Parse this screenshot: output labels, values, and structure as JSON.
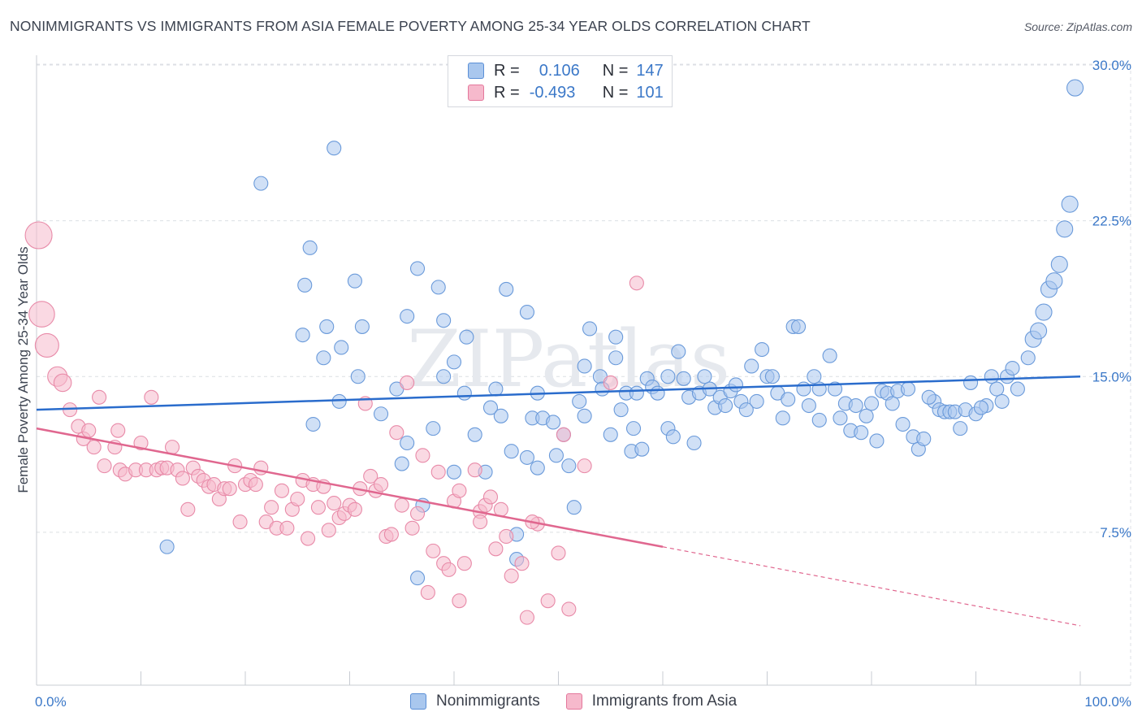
{
  "title": "NONIMMIGRANTS VS IMMIGRANTS FROM ASIA FEMALE POVERTY AMONG 25-34 YEAR OLDS CORRELATION CHART",
  "source": "Source: ZipAtlas.com",
  "watermark": "ZIPatlas",
  "legend": {
    "r_label": "R =",
    "n_label": "N =",
    "series": [
      {
        "name": "Nonimmigrants",
        "r": "0.106",
        "n": "147",
        "fill": "#a9c7ee",
        "stroke": "#5b8fd6"
      },
      {
        "name": "Immigrants from Asia",
        "r": "-0.493",
        "n": "101",
        "fill": "#f6b9cc",
        "stroke": "#e4789c"
      }
    ]
  },
  "colors": {
    "blue_fill": "#a9c7ee",
    "blue_stroke": "#6a9ada",
    "blue_line": "#2a6ccc",
    "pink_fill": "#f6b9cc",
    "pink_stroke": "#e88aa8",
    "pink_line": "#e0678f",
    "grid": "#dcdfe4",
    "tick_label": "#3b78c8",
    "axis": "#c8ccd3"
  },
  "chart_data": {
    "type": "scatter",
    "title": "NONIMMIGRANTS VS IMMIGRANTS FROM ASIA FEMALE POVERTY AMONG 25-34 YEAR OLDS CORRELATION CHART",
    "xlabel": "",
    "ylabel": "Female Poverty Among 25-34 Year Olds",
    "xlim": [
      0,
      100
    ],
    "ylim": [
      0,
      31
    ],
    "x_tick_labels": [
      "0.0%",
      "100.0%"
    ],
    "y_ticks": [
      7.5,
      15.0,
      22.5,
      30.0
    ],
    "y_tick_labels": [
      "7.5%",
      "15.0%",
      "22.5%",
      "30.0%"
    ],
    "grid": true,
    "series": [
      {
        "name": "Nonimmigrants",
        "trend": {
          "x": [
            0,
            100
          ],
          "y": [
            13.4,
            15.0
          ],
          "dashed_from": null
        },
        "points": [
          [
            12.5,
            6.8
          ],
          [
            21.5,
            24.3
          ],
          [
            28.5,
            26.0
          ],
          [
            25.5,
            17.0
          ],
          [
            25.7,
            19.4
          ],
          [
            26.5,
            12.7
          ],
          [
            26.2,
            21.2
          ],
          [
            27.5,
            15.9
          ],
          [
            27.8,
            17.4
          ],
          [
            29.0,
            13.8
          ],
          [
            29.2,
            16.4
          ],
          [
            30.5,
            19.6
          ],
          [
            30.8,
            15.0
          ],
          [
            31.2,
            17.4
          ],
          [
            33.0,
            13.2
          ],
          [
            34.5,
            14.4
          ],
          [
            35.0,
            10.8
          ],
          [
            35.5,
            11.8
          ],
          [
            35.5,
            17.9
          ],
          [
            36.5,
            20.2
          ],
          [
            37.0,
            8.8
          ],
          [
            36.5,
            5.3
          ],
          [
            38.0,
            12.5
          ],
          [
            38.5,
            19.3
          ],
          [
            39.0,
            15.0
          ],
          [
            39.0,
            17.7
          ],
          [
            40.0,
            10.4
          ],
          [
            40.0,
            15.7
          ],
          [
            41.0,
            14.2
          ],
          [
            41.2,
            16.9
          ],
          [
            42.0,
            12.2
          ],
          [
            43.0,
            10.4
          ],
          [
            43.5,
            13.5
          ],
          [
            44.0,
            14.4
          ],
          [
            44.5,
            13.1
          ],
          [
            45.0,
            19.2
          ],
          [
            45.5,
            11.4
          ],
          [
            46.0,
            6.2
          ],
          [
            46.0,
            7.4
          ],
          [
            47.0,
            18.1
          ],
          [
            47.0,
            11.1
          ],
          [
            47.5,
            13.0
          ],
          [
            48.0,
            14.2
          ],
          [
            48.5,
            13.0
          ],
          [
            48.0,
            10.6
          ],
          [
            49.5,
            12.8
          ],
          [
            49.8,
            11.2
          ],
          [
            50.5,
            12.2
          ],
          [
            51.0,
            10.7
          ],
          [
            51.5,
            8.7
          ],
          [
            52.0,
            13.8
          ],
          [
            52.5,
            15.5
          ],
          [
            52.5,
            13.1
          ],
          [
            53.0,
            17.3
          ],
          [
            54.0,
            15.0
          ],
          [
            54.2,
            14.4
          ],
          [
            55.0,
            12.2
          ],
          [
            55.5,
            16.9
          ],
          [
            56.0,
            13.4
          ],
          [
            56.5,
            14.2
          ],
          [
            57.0,
            11.4
          ],
          [
            57.2,
            12.5
          ],
          [
            57.5,
            14.2
          ],
          [
            58.0,
            11.5
          ],
          [
            58.5,
            14.9
          ],
          [
            59.0,
            14.5
          ],
          [
            59.5,
            14.2
          ],
          [
            60.5,
            12.5
          ],
          [
            61.0,
            12.1
          ],
          [
            61.5,
            16.2
          ],
          [
            62.0,
            14.9
          ],
          [
            62.5,
            14.0
          ],
          [
            63.0,
            11.8
          ],
          [
            63.5,
            14.2
          ],
          [
            64.5,
            14.4
          ],
          [
            65.0,
            13.5
          ],
          [
            65.5,
            14.0
          ],
          [
            66.0,
            13.6
          ],
          [
            66.5,
            14.3
          ],
          [
            67.5,
            13.8
          ],
          [
            68.5,
            15.5
          ],
          [
            69.0,
            13.8
          ],
          [
            69.5,
            16.3
          ],
          [
            70.0,
            15.0
          ],
          [
            71.0,
            14.2
          ],
          [
            71.5,
            13.0
          ],
          [
            72.0,
            13.9
          ],
          [
            72.5,
            17.4
          ],
          [
            73.0,
            17.4
          ],
          [
            73.5,
            14.4
          ],
          [
            74.0,
            13.6
          ],
          [
            75.0,
            12.9
          ],
          [
            75.0,
            14.4
          ],
          [
            76.5,
            14.4
          ],
          [
            77.0,
            13.0
          ],
          [
            77.5,
            13.7
          ],
          [
            78.0,
            12.4
          ],
          [
            78.5,
            13.6
          ],
          [
            79.0,
            12.3
          ],
          [
            79.5,
            13.1
          ],
          [
            80.0,
            13.7
          ],
          [
            80.5,
            11.9
          ],
          [
            81.0,
            14.3
          ],
          [
            81.5,
            14.2
          ],
          [
            82.0,
            13.7
          ],
          [
            82.5,
            14.3
          ],
          [
            83.0,
            12.7
          ],
          [
            84.0,
            12.1
          ],
          [
            84.5,
            11.5
          ],
          [
            85.0,
            12.0
          ],
          [
            86.0,
            13.8
          ],
          [
            86.5,
            13.4
          ],
          [
            87.0,
            13.3
          ],
          [
            87.5,
            13.3
          ],
          [
            88.0,
            13.3
          ],
          [
            88.5,
            12.5
          ],
          [
            89.0,
            13.4
          ],
          [
            89.5,
            14.7
          ],
          [
            90.0,
            13.2
          ],
          [
            91.0,
            13.6
          ],
          [
            91.5,
            15.0
          ],
          [
            92.0,
            14.4
          ],
          [
            92.5,
            13.8
          ],
          [
            93.0,
            15.0
          ],
          [
            93.5,
            15.4
          ],
          [
            94.0,
            14.4
          ],
          [
            95.0,
            15.9
          ],
          [
            95.5,
            16.8
          ],
          [
            96.0,
            17.2
          ],
          [
            96.5,
            18.1
          ],
          [
            97.0,
            19.2
          ],
          [
            97.5,
            19.6
          ],
          [
            98.0,
            20.4
          ],
          [
            98.5,
            22.1
          ],
          [
            99.0,
            23.3
          ],
          [
            99.5,
            28.9
          ],
          [
            55.5,
            15.9
          ],
          [
            60.5,
            15.0
          ],
          [
            64.0,
            15.0
          ],
          [
            67.0,
            14.6
          ],
          [
            68.0,
            13.4
          ],
          [
            70.5,
            15.0
          ],
          [
            74.5,
            15.0
          ],
          [
            76.0,
            16.0
          ],
          [
            83.5,
            14.4
          ],
          [
            85.5,
            14.0
          ],
          [
            90.5,
            13.5
          ]
        ]
      },
      {
        "name": "Immigrants from Asia",
        "trend": {
          "x": [
            0,
            100
          ],
          "y": [
            12.5,
            3.0
          ],
          "dashed_from": 60
        },
        "points": [
          [
            0.2,
            21.8
          ],
          [
            0.5,
            18.0
          ],
          [
            1.0,
            16.5
          ],
          [
            2.0,
            15.0
          ],
          [
            2.5,
            14.7
          ],
          [
            3.2,
            13.4
          ],
          [
            4.0,
            12.6
          ],
          [
            4.5,
            12.0
          ],
          [
            5.0,
            12.4
          ],
          [
            5.5,
            11.6
          ],
          [
            6.0,
            14.0
          ],
          [
            6.5,
            10.7
          ],
          [
            7.5,
            11.6
          ],
          [
            7.8,
            12.4
          ],
          [
            8.0,
            10.5
          ],
          [
            8.5,
            10.3
          ],
          [
            9.5,
            10.5
          ],
          [
            10.0,
            11.8
          ],
          [
            10.5,
            10.5
          ],
          [
            11.0,
            14.0
          ],
          [
            11.5,
            10.5
          ],
          [
            12.0,
            10.6
          ],
          [
            12.5,
            10.6
          ],
          [
            13.0,
            11.6
          ],
          [
            13.5,
            10.5
          ],
          [
            14.0,
            10.1
          ],
          [
            14.5,
            8.6
          ],
          [
            15.0,
            10.6
          ],
          [
            15.5,
            10.2
          ],
          [
            16.0,
            10.0
          ],
          [
            16.5,
            9.7
          ],
          [
            17.0,
            9.8
          ],
          [
            17.5,
            9.1
          ],
          [
            18.0,
            9.6
          ],
          [
            18.5,
            9.6
          ],
          [
            19.0,
            10.7
          ],
          [
            19.5,
            8.0
          ],
          [
            20.0,
            9.8
          ],
          [
            20.5,
            10.0
          ],
          [
            21.0,
            9.8
          ],
          [
            21.5,
            10.6
          ],
          [
            22.0,
            8.0
          ],
          [
            22.5,
            8.7
          ],
          [
            23.0,
            7.7
          ],
          [
            23.5,
            9.5
          ],
          [
            24.0,
            7.7
          ],
          [
            24.5,
            8.6
          ],
          [
            25.0,
            9.1
          ],
          [
            25.5,
            10.0
          ],
          [
            26.0,
            7.2
          ],
          [
            26.5,
            9.8
          ],
          [
            27.0,
            8.7
          ],
          [
            27.5,
            9.7
          ],
          [
            28.0,
            7.6
          ],
          [
            28.5,
            8.9
          ],
          [
            29.0,
            8.2
          ],
          [
            29.5,
            8.4
          ],
          [
            30.0,
            8.8
          ],
          [
            30.5,
            8.6
          ],
          [
            31.0,
            9.6
          ],
          [
            31.5,
            13.7
          ],
          [
            32.0,
            10.2
          ],
          [
            32.5,
            9.5
          ],
          [
            33.0,
            9.8
          ],
          [
            33.5,
            7.3
          ],
          [
            34.0,
            7.4
          ],
          [
            34.5,
            12.3
          ],
          [
            35.0,
            8.8
          ],
          [
            35.5,
            14.7
          ],
          [
            36.0,
            7.7
          ],
          [
            36.5,
            8.4
          ],
          [
            37.0,
            11.2
          ],
          [
            37.5,
            4.6
          ],
          [
            38.0,
            6.6
          ],
          [
            38.5,
            10.4
          ],
          [
            39.0,
            6.0
          ],
          [
            39.5,
            5.7
          ],
          [
            40.0,
            9.0
          ],
          [
            40.5,
            9.5
          ],
          [
            41.0,
            6.0
          ],
          [
            42.0,
            10.5
          ],
          [
            42.5,
            8.5
          ],
          [
            43.0,
            8.8
          ],
          [
            43.5,
            9.2
          ],
          [
            44.0,
            6.7
          ],
          [
            44.5,
            8.6
          ],
          [
            45.0,
            7.3
          ],
          [
            45.5,
            5.4
          ],
          [
            46.5,
            6.0
          ],
          [
            47.0,
            3.4
          ],
          [
            48.0,
            7.9
          ],
          [
            49.0,
            4.2
          ],
          [
            50.5,
            12.2
          ],
          [
            51.0,
            3.8
          ],
          [
            52.5,
            10.7
          ],
          [
            55.0,
            14.7
          ],
          [
            57.5,
            19.5
          ],
          [
            40.5,
            4.2
          ],
          [
            42.5,
            8.0
          ],
          [
            47.5,
            8.0
          ],
          [
            50.0,
            6.5
          ]
        ]
      }
    ]
  }
}
